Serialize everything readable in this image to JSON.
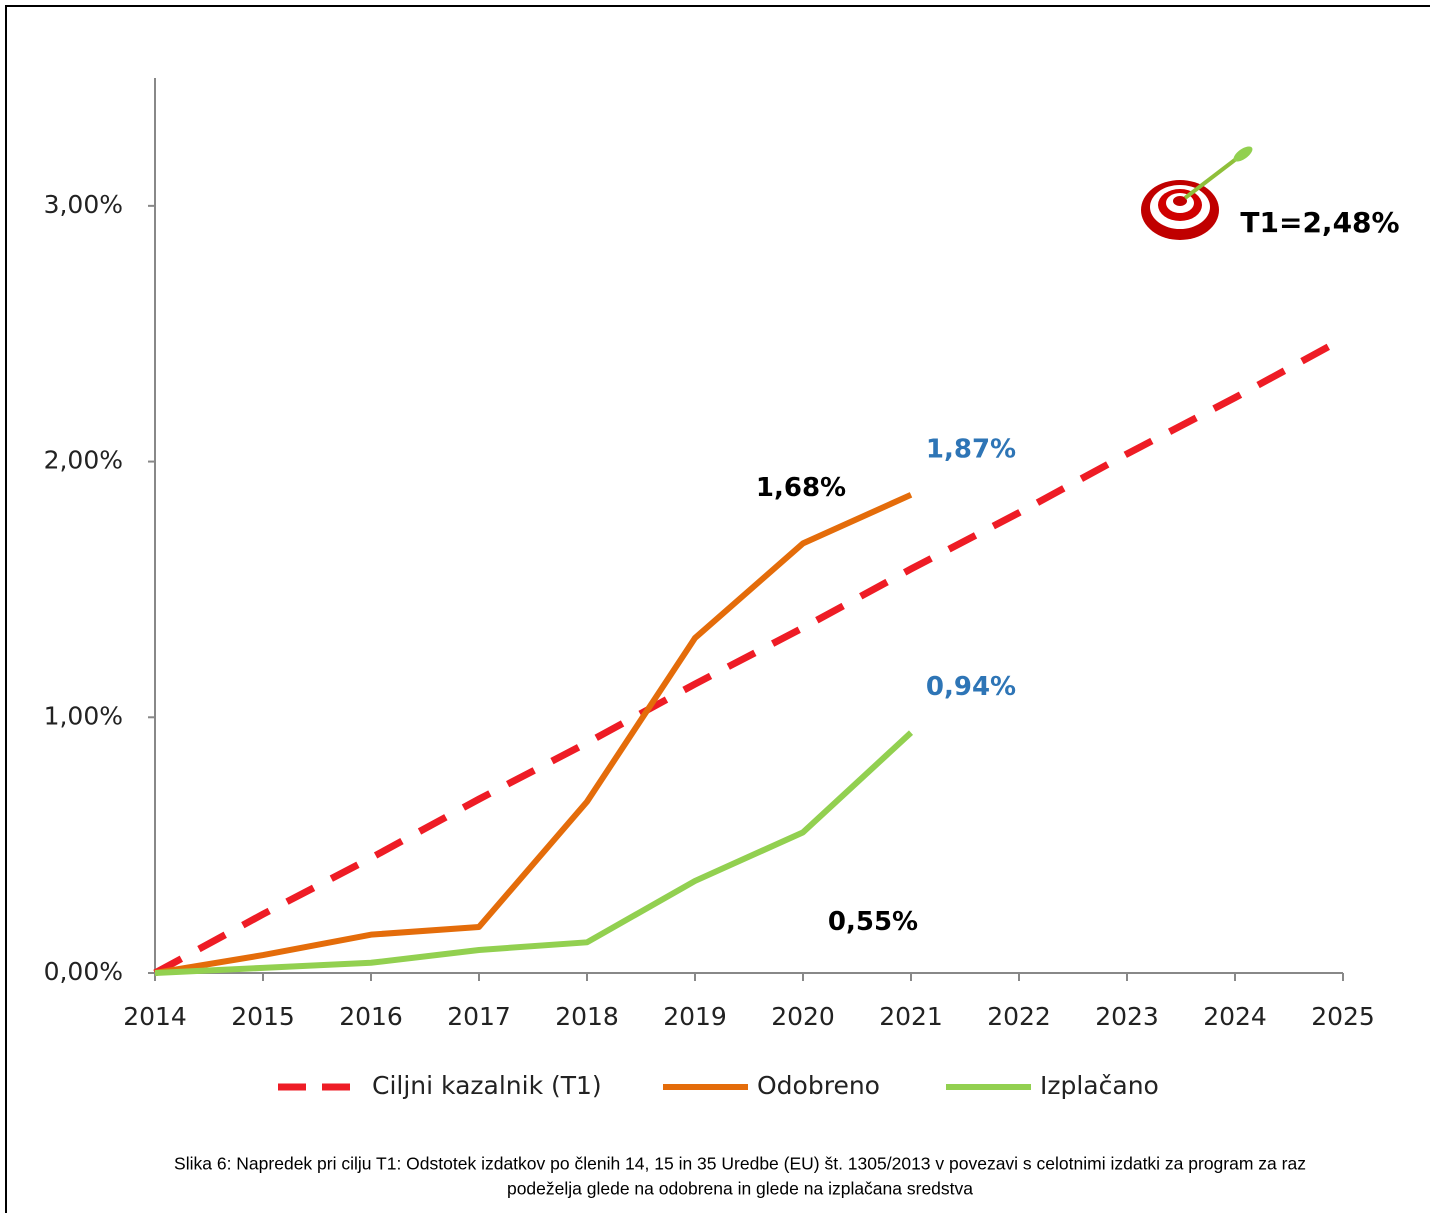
{
  "chart_data": {
    "type": "line",
    "x": [
      2014,
      2015,
      2016,
      2017,
      2018,
      2019,
      2020,
      2021,
      2022,
      2023,
      2024,
      2025
    ],
    "xlim": [
      2014,
      2025
    ],
    "xticks": [
      2014,
      2015,
      2016,
      2017,
      2018,
      2019,
      2020,
      2021,
      2022,
      2023,
      2024,
      2025
    ],
    "ylim": [
      0,
      3.5
    ],
    "yticks": [
      {
        "value": 0,
        "label": "0,00%"
      },
      {
        "value": 1,
        "label": "1,00%"
      },
      {
        "value": 2,
        "label": "2,00%"
      },
      {
        "value": 3,
        "label": "3,00%"
      }
    ],
    "grid": false,
    "series": [
      {
        "name": "Ciljni kazalnik (T1)",
        "color": "#ee1c25",
        "dashed": true,
        "values": [
          0,
          0.23,
          0.45,
          0.68,
          0.9,
          1.13,
          1.35,
          1.58,
          1.8,
          2.03,
          2.25,
          2.48
        ]
      },
      {
        "name": "Odobreno",
        "color": "#e46c0a",
        "dashed": false,
        "values": [
          0,
          0.07,
          0.15,
          0.18,
          0.67,
          1.31,
          1.68,
          1.87,
          null,
          null,
          null,
          null
        ],
        "value_labels": [
          null,
          null,
          null,
          null,
          null,
          null,
          "1,68%",
          "1,87%",
          null,
          null,
          null,
          null
        ],
        "value_label_colors": [
          null,
          null,
          null,
          null,
          null,
          null,
          "#000000",
          "#2e75b6",
          null,
          null,
          null,
          null
        ]
      },
      {
        "name": "Izplačano",
        "color": "#92d050",
        "dashed": false,
        "values": [
          0,
          0.02,
          0.04,
          0.09,
          0.12,
          0.36,
          0.55,
          0.94,
          null,
          null,
          null,
          null
        ],
        "value_labels": [
          null,
          null,
          null,
          null,
          null,
          null,
          "0,55%",
          "0,94%",
          null,
          null,
          null,
          null
        ],
        "value_label_colors": [
          null,
          null,
          null,
          null,
          null,
          null,
          "#000000",
          "#2e75b6",
          null,
          null,
          null,
          null
        ]
      }
    ],
    "annotation": "T1=2,48%",
    "caption_lines": [
      "Slika 6: Napredek pri cilju T1: Odstotek izdatkov po členih 14, 15 in 35 Uredbe (EU) št. 1305/2013 v povezavi s celotnimi izdatki za program za raz",
      "podeželja glede na odobrena in glede na izplačana sredstva"
    ]
  }
}
